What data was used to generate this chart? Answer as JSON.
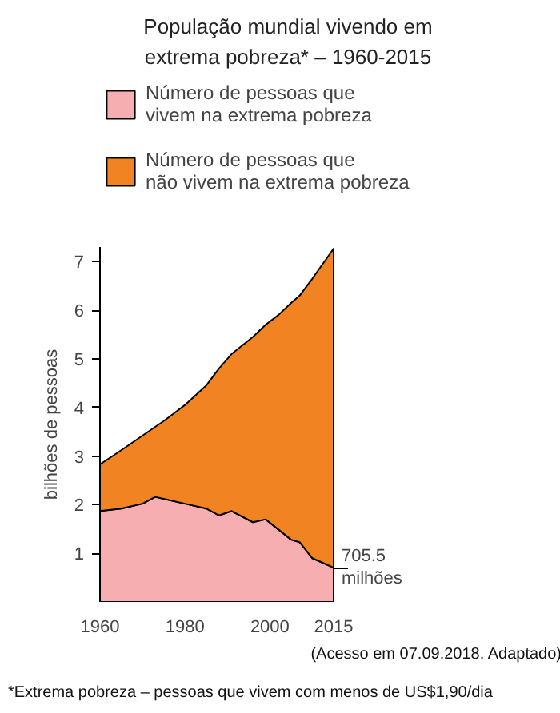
{
  "chart_data": {
    "type": "area",
    "title": "População mundial vivendo em extrema pobreza* – 1960-2015",
    "ylabel": "bilhões de pessoas",
    "x": [
      1960,
      1965,
      1970,
      1973,
      1975,
      1980,
      1985,
      1988,
      1991,
      1996,
      1999,
      2002,
      2005,
      2007,
      2010,
      2015
    ],
    "stacked": true,
    "series": [
      {
        "name": "Número de pessoas que\nvivem na extrema pobreza",
        "color": "#f7aeb0",
        "values": [
          1.87,
          1.92,
          2.02,
          2.16,
          2.12,
          2.02,
          1.92,
          1.78,
          1.87,
          1.64,
          1.7,
          1.49,
          1.28,
          1.23,
          0.9,
          0.7055
        ]
      },
      {
        "name": "Número de pessoas que\nnão vivem na extrema pobreza",
        "color": "#f28322",
        "values": [
          0.96,
          1.2,
          1.4,
          1.44,
          1.6,
          2.03,
          2.53,
          3.02,
          3.23,
          3.81,
          4.0,
          4.41,
          4.87,
          5.07,
          5.75,
          6.56
        ]
      }
    ],
    "xlim": [
      1960,
      2015
    ],
    "ylim": [
      0,
      7.3
    ],
    "xticks": [
      1960,
      1980,
      2000,
      2015
    ],
    "yticks": [
      1,
      2,
      3,
      4,
      5,
      6,
      7
    ],
    "grid": false,
    "legend": "top",
    "annotations": [
      {
        "text": "705.5\nmilhões",
        "x": 2015,
        "y": 0.7055
      },
      "(Acesso em 07.09.2018. Adaptado)",
      "*Extrema pobreza – pessoas que vivem com menos de US$1,90/dia"
    ]
  }
}
